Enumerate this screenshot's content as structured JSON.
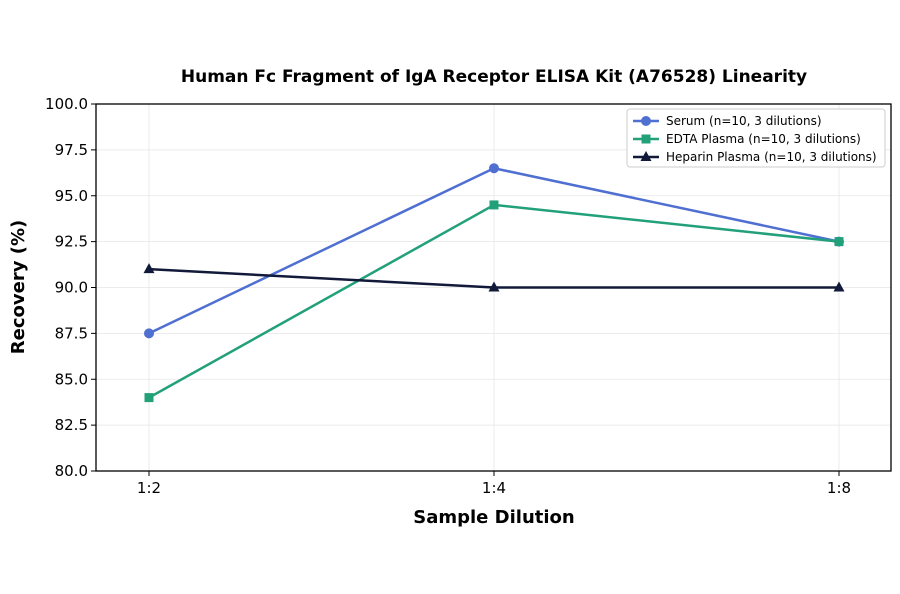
{
  "chart_data": {
    "type": "line",
    "title": "Human Fc Fragment of IgA Receptor ELISA Kit (A76528) Linearity",
    "xlabel": "Sample Dilution",
    "ylabel": "Recovery (%)",
    "categories": [
      "1:2",
      "1:4",
      "1:8"
    ],
    "ylim": [
      80.0,
      100.0
    ],
    "yticks": [
      "80.0",
      "82.5",
      "85.0",
      "87.5",
      "90.0",
      "92.5",
      "95.0",
      "97.5",
      "100.0"
    ],
    "ytick_values": [
      80.0,
      82.5,
      85.0,
      87.5,
      90.0,
      92.5,
      95.0,
      97.5,
      100.0
    ],
    "grid": true,
    "legend_position": "top-right",
    "series": [
      {
        "name": "Serum (n=10, 3 dilutions)",
        "values": [
          87.5,
          96.5,
          92.5
        ],
        "color": "#4f6fd1",
        "marker": "circle"
      },
      {
        "name": "EDTA Plasma (n=10, 3 dilutions)",
        "values": [
          84.0,
          94.5,
          92.5
        ],
        "color": "#22a07a",
        "marker": "square"
      },
      {
        "name": "Heparin Plasma (n=10, 3 dilutions)",
        "values": [
          91.0,
          90.0,
          90.0
        ],
        "color": "#121a3a",
        "marker": "triangle"
      }
    ]
  }
}
